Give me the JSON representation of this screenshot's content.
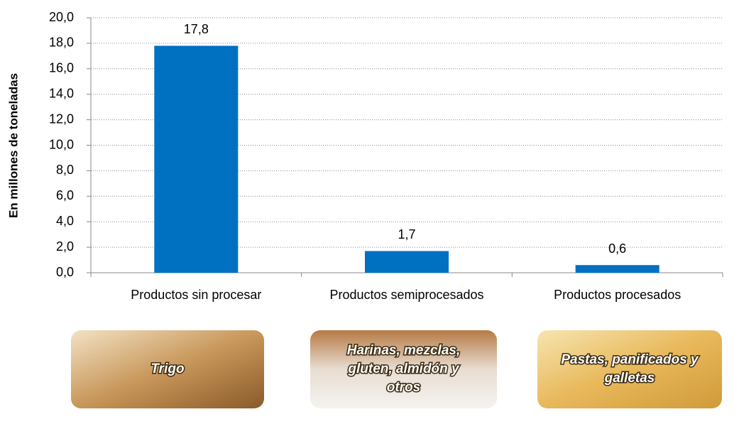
{
  "chart_data": {
    "type": "bar",
    "y_axis_label": "En millones de toneladas",
    "categories": [
      "Productos sin procesar",
      "Productos semiprocesados",
      "Productos procesados"
    ],
    "values": [
      17.8,
      1.7,
      0.6
    ],
    "value_labels": [
      "17,8",
      "1,7",
      "0,6"
    ],
    "color": "#0070c0",
    "ylim": [
      0,
      20
    ],
    "yticks": [
      {
        "value": 0,
        "label": "0,0"
      },
      {
        "value": 2,
        "label": "2,0"
      },
      {
        "value": 4,
        "label": "4,0"
      },
      {
        "value": 6,
        "label": "6,0"
      },
      {
        "value": 8,
        "label": "8,0"
      },
      {
        "value": 10,
        "label": "10,0"
      },
      {
        "value": 12,
        "label": "12,0"
      },
      {
        "value": 14,
        "label": "14,0"
      },
      {
        "value": 16,
        "label": "16,0"
      },
      {
        "value": 18,
        "label": "18,0"
      },
      {
        "value": 20,
        "label": "20,0"
      }
    ],
    "grid": true
  },
  "images": [
    {
      "caption_lines": [
        "Trigo"
      ]
    },
    {
      "caption_lines": [
        "Harinas, mezclas,",
        "gluten, almidón y",
        "otros"
      ]
    },
    {
      "caption_lines": [
        "Pastas, panificados y",
        "galletas"
      ]
    }
  ]
}
